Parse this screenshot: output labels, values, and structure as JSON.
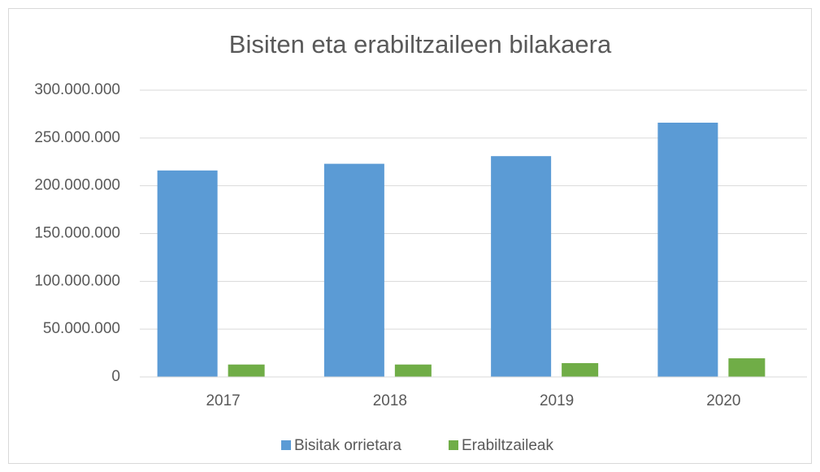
{
  "chart_data": {
    "type": "bar",
    "title": "Bisiten eta erabiltzaileen bilakaera",
    "categories": [
      "2017",
      "2018",
      "2019",
      "2020"
    ],
    "series": [
      {
        "name": "Bisitak orrietara",
        "color": "#5b9bd5",
        "values": [
          216000000,
          223000000,
          231000000,
          266000000
        ]
      },
      {
        "name": "Erabiltzaileak",
        "color": "#70ad47",
        "values": [
          13000000,
          13000000,
          14500000,
          19500000
        ]
      }
    ],
    "ylim": [
      0,
      300000000
    ],
    "yticks": [
      0,
      {
        "value": 50000000,
        "label": "50.000.000"
      },
      {
        "value": 100000000,
        "label": "100.000.000"
      },
      {
        "value": 150000000,
        "label": "150.000.000"
      },
      {
        "value": 200000000,
        "label": "200.000.000"
      },
      {
        "value": 250000000,
        "label": "250.000.000"
      },
      {
        "value": 300000000,
        "label": "300.000.000"
      }
    ],
    "grid": true,
    "legend": "bottom"
  }
}
